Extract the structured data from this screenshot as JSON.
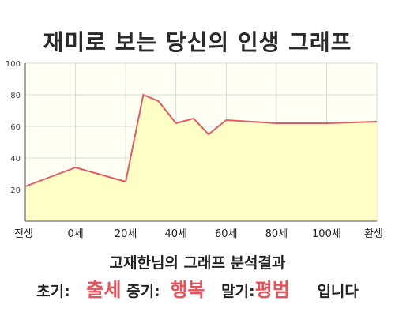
{
  "chart_data": {
    "type": "area",
    "title": "재미로 보는 당신의 인생 그래프",
    "x_tick_labels": [
      "전생",
      "0세",
      "20세",
      "40세",
      "60세",
      "80세",
      "100세",
      "환생"
    ],
    "y_ticks": [
      20,
      40,
      60,
      80,
      100
    ],
    "ylim": [
      0,
      100
    ],
    "grid": true,
    "x": [
      -20,
      0,
      20,
      27,
      33,
      40,
      47,
      53,
      60,
      80,
      100,
      120
    ],
    "values": [
      22,
      34,
      25,
      80,
      76,
      62,
      65,
      55,
      64,
      62,
      62,
      63
    ],
    "colors": {
      "line": "#e05c65",
      "fill": "#ffffc6",
      "grid": "#d9d9d9",
      "axis": "#888888"
    }
  },
  "result": {
    "title": "고재한님의 그래프 분석결과",
    "early_label": "초기:",
    "early_value": "출세",
    "mid_label": "중기:",
    "mid_value": "행복",
    "late_label": "말기:",
    "late_value": "평범",
    "suffix": "입니다"
  }
}
